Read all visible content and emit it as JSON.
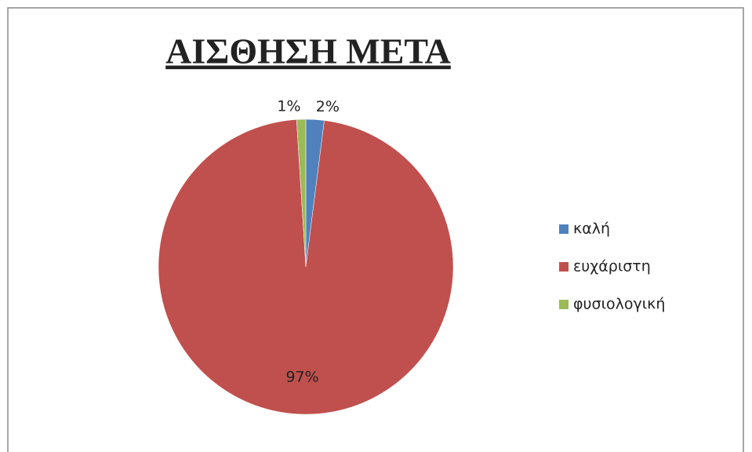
{
  "chart_data": {
    "type": "pie",
    "title": "ΑΙΣΘΗΣΗ ΜΕΤΑ",
    "categories": [
      "καλή",
      "ευχάριστη",
      "φυσιολογική"
    ],
    "values": [
      2,
      97,
      1
    ],
    "value_labels": [
      "2%",
      "97%",
      "1%"
    ],
    "colors": [
      "#4f81bd",
      "#c0504d",
      "#9bbb59"
    ],
    "legend": "right"
  }
}
